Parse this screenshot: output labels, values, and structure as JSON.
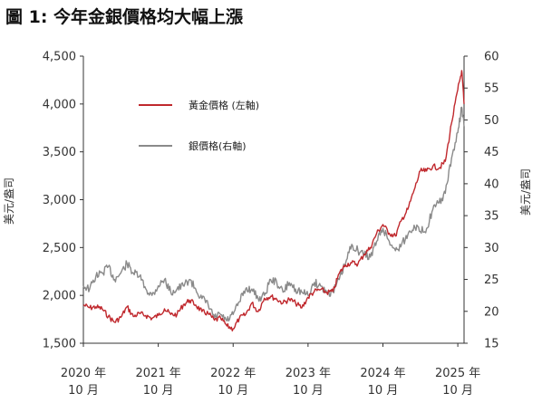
{
  "figure": {
    "title": "圖 1: 今年金銀價格均大幅上漲"
  },
  "chart_data": {
    "type": "line",
    "title": "圖 1: 今年金銀價格均大幅上漲",
    "left_axis": {
      "label": "美元/盎司",
      "ylim": [
        1500,
        4500
      ],
      "ticks": [
        "1,500",
        "2,000",
        "2,500",
        "3,000",
        "3,500",
        "4,000",
        "4,500"
      ],
      "tick_values": [
        1500,
        2000,
        2500,
        3000,
        3500,
        4000,
        4500
      ]
    },
    "right_axis": {
      "label": "美元/盎司",
      "ylim": [
        15,
        60
      ],
      "ticks": [
        "15",
        "20",
        "25",
        "30",
        "35",
        "40",
        "45",
        "50",
        "55",
        "60"
      ],
      "tick_values": [
        15,
        20,
        25,
        30,
        35,
        40,
        45,
        50,
        55,
        60
      ]
    },
    "x_axis": {
      "range": [
        "2020-10",
        "2025-11"
      ],
      "ticks": [
        {
          "year": "2020 年",
          "month": "10 月",
          "date": "2020-10"
        },
        {
          "year": "2021 年",
          "month": "10 月",
          "date": "2021-10"
        },
        {
          "year": "2022 年",
          "month": "10 月",
          "date": "2022-10"
        },
        {
          "year": "2023 年",
          "month": "10 月",
          "date": "2023-10"
        },
        {
          "year": "2024 年",
          "month": "10 月",
          "date": "2024-10"
        },
        {
          "year": "2025 年",
          "month": "10 月",
          "date": "2025-10"
        }
      ]
    },
    "legend_position": "upper-left",
    "grid": false,
    "series": [
      {
        "name": "黃金價格 (左軸)",
        "axis": "left",
        "color": "#c0282d",
        "points": [
          [
            "2020-10",
            1900
          ],
          [
            "2020-11",
            1870
          ],
          [
            "2020-12",
            1880
          ],
          [
            "2021-01",
            1860
          ],
          [
            "2021-02",
            1780
          ],
          [
            "2021-03",
            1720
          ],
          [
            "2021-04",
            1770
          ],
          [
            "2021-05",
            1880
          ],
          [
            "2021-06",
            1780
          ],
          [
            "2021-07",
            1810
          ],
          [
            "2021-08",
            1790
          ],
          [
            "2021-09",
            1760
          ],
          [
            "2021-10",
            1790
          ],
          [
            "2021-11",
            1860
          ],
          [
            "2021-12",
            1800
          ],
          [
            "2022-01",
            1800
          ],
          [
            "2022-02",
            1900
          ],
          [
            "2022-03",
            1950
          ],
          [
            "2022-04",
            1900
          ],
          [
            "2022-05",
            1830
          ],
          [
            "2022-06",
            1810
          ],
          [
            "2022-07",
            1740
          ],
          [
            "2022-08",
            1760
          ],
          [
            "2022-09",
            1680
          ],
          [
            "2022-10",
            1650
          ],
          [
            "2022-11",
            1760
          ],
          [
            "2022-12",
            1800
          ],
          [
            "2023-01",
            1920
          ],
          [
            "2023-02",
            1830
          ],
          [
            "2023-03",
            1970
          ],
          [
            "2023-04",
            1990
          ],
          [
            "2023-05",
            1960
          ],
          [
            "2023-06",
            1920
          ],
          [
            "2023-07",
            1960
          ],
          [
            "2023-08",
            1920
          ],
          [
            "2023-09",
            1870
          ],
          [
            "2023-10",
            1980
          ],
          [
            "2023-11",
            2040
          ],
          [
            "2023-12",
            2060
          ],
          [
            "2024-01",
            2030
          ],
          [
            "2024-02",
            2040
          ],
          [
            "2024-03",
            2230
          ],
          [
            "2024-04",
            2320
          ],
          [
            "2024-05",
            2340
          ],
          [
            "2024-06",
            2330
          ],
          [
            "2024-07",
            2430
          ],
          [
            "2024-08",
            2500
          ],
          [
            "2024-09",
            2650
          ],
          [
            "2024-10",
            2740
          ],
          [
            "2024-11",
            2650
          ],
          [
            "2024-12",
            2620
          ],
          [
            "2025-01",
            2790
          ],
          [
            "2025-02",
            2900
          ],
          [
            "2025-03",
            3100
          ],
          [
            "2025-04",
            3300
          ],
          [
            "2025-05",
            3300
          ],
          [
            "2025-06",
            3350
          ],
          [
            "2025-07",
            3330
          ],
          [
            "2025-08",
            3400
          ],
          [
            "2025-09",
            3800
          ],
          [
            "2025-10",
            4150
          ],
          [
            "2025-10-20",
            4350
          ],
          [
            "2025-11",
            4000
          ]
        ]
      },
      {
        "name": "銀價格(右軸)",
        "axis": "right",
        "color": "#8a8a8a",
        "points": [
          [
            "2020-10",
            24
          ],
          [
            "2020-11",
            23.5
          ],
          [
            "2020-12",
            25.5
          ],
          [
            "2021-01",
            26
          ],
          [
            "2021-02",
            27
          ],
          [
            "2021-03",
            25
          ],
          [
            "2021-04",
            26
          ],
          [
            "2021-05",
            27.5
          ],
          [
            "2021-06",
            26
          ],
          [
            "2021-07",
            25.5
          ],
          [
            "2021-08",
            23.5
          ],
          [
            "2021-09",
            22.5
          ],
          [
            "2021-10",
            24
          ],
          [
            "2021-11",
            25
          ],
          [
            "2021-12",
            23
          ],
          [
            "2022-01",
            23.5
          ],
          [
            "2022-02",
            24
          ],
          [
            "2022-03",
            25
          ],
          [
            "2022-04",
            23.5
          ],
          [
            "2022-05",
            22
          ],
          [
            "2022-06",
            21
          ],
          [
            "2022-07",
            19
          ],
          [
            "2022-08",
            19.5
          ],
          [
            "2022-09",
            18.5
          ],
          [
            "2022-10",
            19.5
          ],
          [
            "2022-11",
            21.5
          ],
          [
            "2022-12",
            23.5
          ],
          [
            "2023-01",
            23.5
          ],
          [
            "2023-02",
            22
          ],
          [
            "2023-03",
            22.5
          ],
          [
            "2023-04",
            25
          ],
          [
            "2023-05",
            24.5
          ],
          [
            "2023-06",
            23
          ],
          [
            "2023-07",
            24.5
          ],
          [
            "2023-08",
            23.5
          ],
          [
            "2023-09",
            23
          ],
          [
            "2023-10",
            22.5
          ],
          [
            "2023-11",
            24.5
          ],
          [
            "2023-12",
            24
          ],
          [
            "2024-01",
            23
          ],
          [
            "2024-02",
            23
          ],
          [
            "2024-03",
            25
          ],
          [
            "2024-04",
            27.5
          ],
          [
            "2024-05",
            30.5
          ],
          [
            "2024-06",
            29.5
          ],
          [
            "2024-07",
            29
          ],
          [
            "2024-08",
            28.5
          ],
          [
            "2024-09",
            31
          ],
          [
            "2024-10",
            33
          ],
          [
            "2024-11",
            31
          ],
          [
            "2024-12",
            29.5
          ],
          [
            "2025-01",
            30.5
          ],
          [
            "2025-02",
            32
          ],
          [
            "2025-03",
            33.5
          ],
          [
            "2025-04",
            32.5
          ],
          [
            "2025-05",
            33
          ],
          [
            "2025-06",
            36
          ],
          [
            "2025-07",
            37
          ],
          [
            "2025-08",
            38.5
          ],
          [
            "2025-09",
            44
          ],
          [
            "2025-10",
            48
          ],
          [
            "2025-10-20",
            52
          ],
          [
            "2025-11",
            49
          ]
        ]
      }
    ]
  }
}
